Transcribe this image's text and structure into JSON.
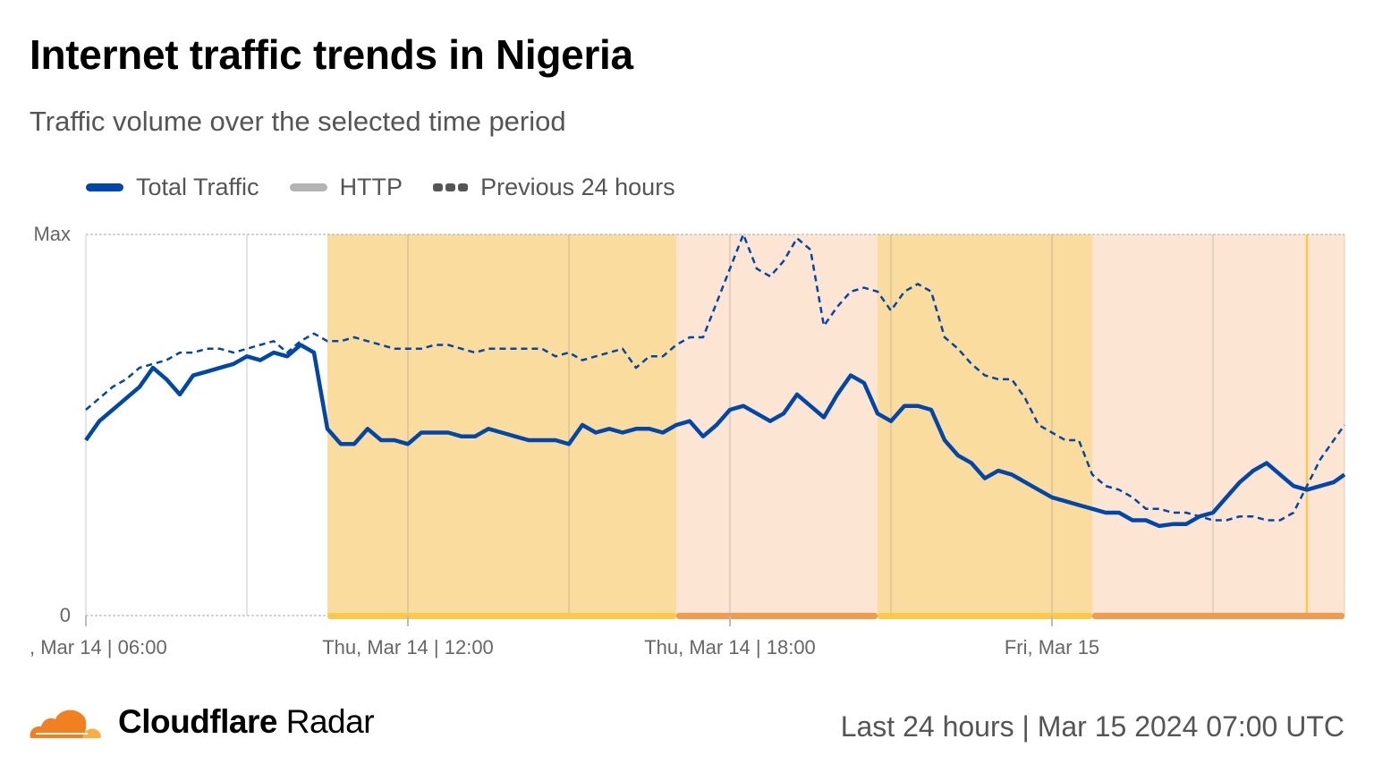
{
  "header": {
    "title": "Internet traffic trends in Nigeria",
    "subtitle": "Traffic volume over the selected time period"
  },
  "legend": [
    {
      "label": "Total Traffic",
      "color": "#0047ab",
      "style": "solid"
    },
    {
      "label": "HTTP",
      "color": "#b3b3b3",
      "style": "solid"
    },
    {
      "label": "Previous 24 hours",
      "color": "#555555",
      "style": "dashed"
    }
  ],
  "footer": {
    "brand_bold": "Cloudflare",
    "brand_light": "Radar",
    "logo_colors": [
      "#f38020",
      "#fbad41"
    ],
    "period": "Last 24 hours",
    "separator": "|",
    "timestamp": "Mar 15 2024 07:00 UTC"
  },
  "chart_data": {
    "type": "line",
    "title": "Internet traffic trends in Nigeria",
    "xlabel": "",
    "ylabel": "",
    "y_tick_labels": [
      "0",
      "Max"
    ],
    "ylim": [
      0,
      100
    ],
    "x_start": "2024-03-14T06:00",
    "x_interval_minutes": 15,
    "x_tick_labels": [
      {
        "time": "2024-03-14T06:00",
        "label": ", Mar 14 | 06:00"
      },
      {
        "time": "2024-03-14T12:00",
        "label": "Thu, Mar 14 | 12:00"
      },
      {
        "time": "2024-03-14T18:00",
        "label": "Thu, Mar 14 | 18:00"
      },
      {
        "time": "2024-03-15T00:00",
        "label": "Fri, Mar 15"
      }
    ],
    "grid": "vertical every 3 hours",
    "legend_position": "top-left",
    "series": [
      {
        "name": "Total Traffic",
        "color": "#0047ab",
        "style": "solid",
        "values": [
          46,
          51,
          54,
          57,
          60,
          65,
          62,
          58,
          63,
          64,
          65,
          66,
          68,
          67,
          69,
          68,
          71,
          69,
          49,
          45,
          45,
          49,
          46,
          46,
          45,
          48,
          48,
          48,
          47,
          47,
          49,
          48,
          47,
          46,
          46,
          46,
          45,
          50,
          48,
          49,
          48,
          49,
          49,
          48,
          50,
          51,
          47,
          50,
          54,
          55,
          53,
          51,
          53,
          58,
          55,
          52,
          58,
          63,
          61,
          53,
          51,
          55,
          55,
          54,
          46,
          42,
          40,
          36,
          38,
          37,
          35,
          33,
          31,
          30,
          29,
          28,
          27,
          27,
          25,
          25,
          23.5,
          24,
          24,
          26,
          27,
          31,
          35,
          38,
          40,
          37,
          34,
          33,
          34,
          35,
          37
        ]
      },
      {
        "name": "Previous 24 hours",
        "color": "#0047ab",
        "style": "dashed",
        "values": [
          54,
          57,
          60,
          62,
          65,
          66,
          67,
          69,
          69,
          70,
          70,
          69,
          70,
          71,
          72,
          69,
          72,
          74,
          72,
          72,
          73,
          72,
          71,
          70,
          70,
          70,
          71,
          71,
          70,
          69,
          70,
          70,
          70,
          70,
          70,
          68,
          69,
          67,
          68,
          69,
          70,
          65,
          68,
          68,
          71,
          73,
          73,
          82,
          91,
          100,
          91,
          89,
          93,
          99,
          96,
          76,
          81,
          85,
          86,
          85,
          80,
          85,
          87,
          85,
          73,
          70,
          66,
          63,
          62,
          62,
          57,
          50,
          48,
          46,
          46,
          37,
          34,
          33,
          31,
          28,
          28,
          27,
          27,
          26,
          25,
          25,
          26,
          26,
          25,
          25,
          27,
          34,
          41,
          46,
          50
        ]
      }
    ],
    "annotation_bands": [
      {
        "start": "2024-03-14T10:30",
        "end": "2024-03-14T17:00",
        "fill": "#fbdc9f",
        "bar": "#fcc84a"
      },
      {
        "start": "2024-03-14T17:00",
        "end": "2024-03-14T20:45",
        "fill": "#fde5d3",
        "bar": "#f29a4d"
      },
      {
        "start": "2024-03-14T20:45",
        "end": "2024-03-15T00:45",
        "fill": "#fbdc9f",
        "bar": "#fcc84a"
      },
      {
        "start": "2024-03-15T00:45",
        "end": "2024-03-15T05:30",
        "fill": "#fde5d3",
        "bar": "#f29a4d"
      }
    ],
    "marker_line": {
      "time": "2024-03-15T04:45",
      "color": "#fcc84a"
    }
  }
}
